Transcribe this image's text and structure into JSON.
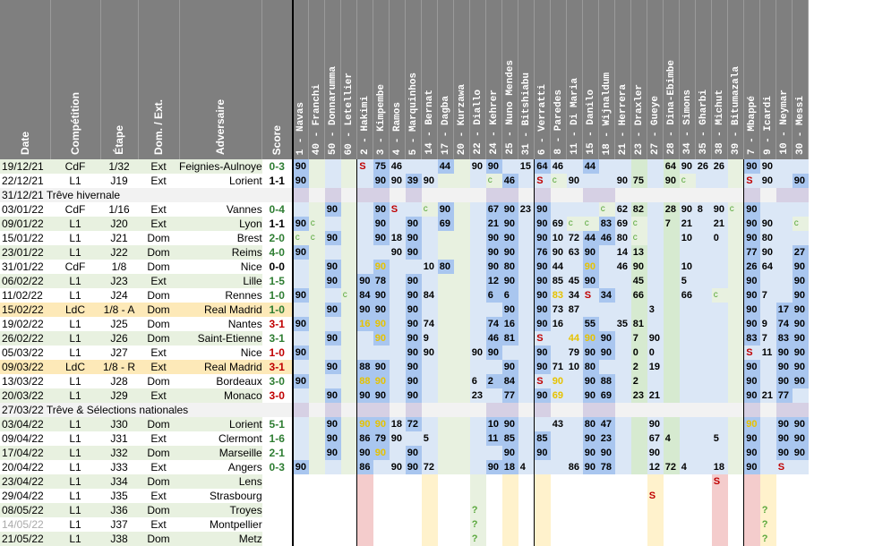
{
  "headers": {
    "info": [
      "Date",
      "Compétition",
      "Étape",
      "Dom. / Ext.",
      "Adversaire",
      "Score"
    ],
    "players": [
      "1 - Navas",
      "40 - Franchi",
      "50 - Donnarumma",
      "60 - Letellier",
      "2 - Hakimi",
      "3 - Kimpembe",
      "4 - Ramos",
      "5 - Marquinhos",
      "14 - Bernat",
      "17 - Dagba",
      "20 - Kurzawa",
      "22 - Diallo",
      "24 - Kehrer",
      "25 - Nuno Mendes",
      "31 - Bitshiabu",
      "6 - Verratti",
      "8 - Paredes",
      "11 - Di Maria",
      "15 - Danilo",
      "18 - Wijnaldum",
      "21 - Herrera",
      "23 - Draxler",
      "27 - Gueye",
      "28 - Dina-Ebimbe",
      "34 - Simons",
      "35 - Gharbi",
      "38 - Michut",
      "39 - Bitumazala",
      "7 - Mbappé",
      "9 - Icardi",
      "10 - Neymar",
      "30 - Messi"
    ]
  },
  "rows": [
    {
      "date": "19/12/21",
      "comp": "CdF",
      "step": "1/32",
      "ha": "Ext",
      "opp": "Feignies-Aulnoye",
      "score": "0-3",
      "sc": "green",
      "cells": [
        "90",
        "",
        "",
        "",
        "S",
        "75",
        "46",
        "",
        "",
        "44",
        "",
        "90",
        "90",
        "",
        "15",
        "64",
        "46",
        "",
        "44",
        "",
        "",
        "",
        "",
        "64",
        "90",
        "26",
        "26",
        "",
        "90",
        "90",
        "",
        ""
      ]
    },
    {
      "date": "22/12/21",
      "comp": "L1",
      "step": "J19",
      "ha": "Ext",
      "opp": "Lorient",
      "score": "1-1",
      "sc": "dark",
      "cells": [
        "90",
        "",
        "",
        "",
        "",
        "90",
        "90",
        "39",
        "90",
        "",
        "",
        "",
        "c",
        "46",
        "",
        "S",
        "c",
        "90",
        "",
        "",
        "90",
        "75",
        "",
        "90",
        "c",
        "",
        "",
        "",
        "S",
        "90",
        "",
        "90"
      ]
    },
    {
      "type": "sep",
      "text": "31/12/21  Trêve hivernale"
    },
    {
      "date": "03/01/22",
      "comp": "CdF",
      "step": "1/16",
      "ha": "Ext",
      "opp": "Vannes",
      "score": "0-4",
      "sc": "green",
      "cells": [
        "",
        "",
        "90",
        "",
        "",
        "90",
        "S",
        "",
        "c",
        "90",
        "",
        "",
        "67",
        "90",
        "23",
        "90",
        "",
        "",
        "",
        "c",
        "62",
        "82",
        "",
        "28",
        "90",
        "8",
        "90",
        "c",
        "90",
        "",
        "",
        ""
      ]
    },
    {
      "date": "09/01/22",
      "comp": "L1",
      "step": "J20",
      "ha": "Ext",
      "opp": "Lyon",
      "score": "1-1",
      "sc": "dark",
      "cells": [
        "90",
        "c",
        "",
        "",
        "",
        "90",
        "",
        "90",
        "",
        "69",
        "",
        "",
        "21",
        "90",
        "",
        "90",
        "69",
        "c",
        "c",
        "83",
        "69",
        "c",
        "",
        "7",
        "21",
        "",
        "21",
        "",
        "90",
        "90",
        "",
        "c"
      ]
    },
    {
      "date": "15/01/22",
      "comp": "L1",
      "step": "J21",
      "ha": "Dom",
      "opp": "Brest",
      "score": "2-0",
      "sc": "green",
      "cells": [
        "c",
        "c",
        "90",
        "",
        "",
        "90",
        "18",
        "90",
        "",
        "",
        "",
        "",
        "90",
        "90",
        "",
        "90",
        "10",
        "72",
        "44",
        "46",
        "80",
        "c",
        "",
        "",
        "10",
        "",
        "0",
        "",
        "90",
        "80",
        "",
        ""
      ]
    },
    {
      "date": "23/01/22",
      "comp": "L1",
      "step": "J22",
      "ha": "Dom",
      "opp": "Reims",
      "score": "4-0",
      "sc": "green",
      "cells": [
        "90",
        "",
        "",
        "",
        "",
        "",
        "90",
        "90",
        "",
        "",
        "",
        "",
        "90",
        "90",
        "",
        "76",
        "90",
        "63",
        "90",
        "",
        "14",
        "13",
        "",
        "",
        "",
        "",
        "",
        "",
        "77",
        "90",
        "",
        "27"
      ]
    },
    {
      "date": "31/01/22",
      "comp": "CdF",
      "step": "1/8",
      "ha": "Dom",
      "opp": "Nice",
      "score": "0-0",
      "sc": "dark",
      "cells": [
        "",
        "",
        "90",
        "",
        "",
        "90",
        "",
        "",
        "10",
        "80",
        "",
        "",
        "90",
        "80",
        "",
        "90",
        "44",
        "",
        "90",
        "",
        "46",
        "90",
        "",
        "",
        "10",
        "",
        "",
        "",
        "26",
        "64",
        "",
        "90"
      ]
    },
    {
      "date": "06/02/22",
      "comp": "L1",
      "step": "J23",
      "ha": "Ext",
      "opp": "Lille",
      "score": "1-5",
      "sc": "green",
      "cells": [
        "",
        "",
        "90",
        "",
        "90",
        "78",
        "",
        "90",
        "",
        "",
        "",
        "",
        "12",
        "90",
        "",
        "90",
        "85",
        "45",
        "90",
        "",
        "",
        "45",
        "",
        "",
        "5",
        "",
        "",
        "",
        "90",
        "",
        "",
        "90"
      ]
    },
    {
      "date": "11/02/22",
      "comp": "L1",
      "step": "J24",
      "ha": "Dom",
      "opp": "Rennes",
      "score": "1-0",
      "sc": "green",
      "cells": [
        "90",
        "",
        "",
        "c",
        "84",
        "90",
        "",
        "90",
        "84",
        "",
        "",
        "",
        "6",
        "6",
        "",
        "90",
        "83",
        "34",
        "S",
        "34",
        "",
        "66",
        "",
        "",
        "66",
        "",
        "c",
        "",
        "90",
        "7",
        "",
        "90"
      ]
    },
    {
      "date": "15/02/22",
      "comp": "LdC",
      "step": "1/8 - A",
      "ha": "Dom",
      "opp": "Real Madrid",
      "score": "1-0",
      "sc": "green",
      "ldc": true,
      "cells": [
        "",
        "",
        "90",
        "",
        "90",
        "90",
        "",
        "90",
        "",
        "",
        "",
        "",
        "",
        "90",
        "",
        "90",
        "73",
        "87",
        "",
        "",
        "",
        "",
        "3",
        "",
        "",
        "",
        "",
        "",
        "90",
        "",
        "17",
        "90"
      ]
    },
    {
      "date": "19/02/22",
      "comp": "L1",
      "step": "J25",
      "ha": "Dom",
      "opp": "Nantes",
      "score": "3-1",
      "sc": "red",
      "cells": [
        "90",
        "",
        "",
        "",
        "16",
        "90",
        "",
        "90",
        "74",
        "",
        "",
        "",
        "74",
        "16",
        "",
        "90",
        "16",
        "",
        "55",
        "",
        "35",
        "81",
        "",
        "",
        "",
        "",
        "",
        "",
        "90",
        "9",
        "74",
        "90"
      ]
    },
    {
      "date": "26/02/22",
      "comp": "L1",
      "step": "J26",
      "ha": "Dom",
      "opp": "Saint-Etienne",
      "score": "3-1",
      "sc": "green",
      "cells": [
        "",
        "",
        "90",
        "",
        "",
        "90",
        "",
        "90",
        "9",
        "",
        "",
        "",
        "46",
        "81",
        "",
        "S",
        "",
        "44",
        "90",
        "90",
        "",
        "7",
        "90",
        "",
        "",
        "",
        "",
        "",
        "83",
        "7",
        "83",
        "90"
      ]
    },
    {
      "date": "05/03/22",
      "comp": "L1",
      "step": "J27",
      "ha": "Ext",
      "opp": "Nice",
      "score": "1-0",
      "sc": "red",
      "cells": [
        "90",
        "",
        "",
        "",
        "",
        "",
        "",
        "90",
        "90",
        "",
        "",
        "90",
        "90",
        "",
        "",
        "90",
        "",
        "79",
        "90",
        "90",
        "",
        "0",
        "0",
        "",
        "",
        "",
        "",
        "",
        "S",
        "11",
        "90",
        "90"
      ]
    },
    {
      "date": "09/03/22",
      "comp": "LdC",
      "step": "1/8 - R",
      "ha": "Ext",
      "opp": "Real Madrid",
      "score": "3-1",
      "sc": "red",
      "ldc": true,
      "cells": [
        "",
        "",
        "90",
        "",
        "88",
        "90",
        "",
        "90",
        "",
        "",
        "",
        "",
        "",
        "90",
        "",
        "90",
        "71",
        "10",
        "80",
        "",
        "",
        "2",
        "19",
        "",
        "",
        "",
        "",
        "",
        "90",
        "",
        "90",
        "90"
      ]
    },
    {
      "date": "13/03/22",
      "comp": "L1",
      "step": "J28",
      "ha": "Dom",
      "opp": "Bordeaux",
      "score": "3-0",
      "sc": "green",
      "cells": [
        "90",
        "",
        "",
        "",
        "88",
        "90",
        "",
        "90",
        "",
        "",
        "",
        "6",
        "2",
        "84",
        "",
        "S",
        "90",
        "",
        "90",
        "88",
        "",
        "2",
        "",
        "",
        "",
        "",
        "",
        "",
        "90",
        "",
        "90",
        "90"
      ]
    },
    {
      "date": "20/03/22",
      "comp": "L1",
      "step": "J29",
      "ha": "Ext",
      "opp": "Monaco",
      "score": "3-0",
      "sc": "red",
      "cells": [
        "",
        "",
        "90",
        "",
        "90",
        "90",
        "",
        "90",
        "",
        "",
        "",
        "23",
        "",
        "77",
        "",
        "90",
        "69",
        "",
        "90",
        "69",
        "",
        "23",
        "21",
        "",
        "",
        "",
        "",
        "",
        "90",
        "21",
        "77",
        ""
      ]
    },
    {
      "type": "sep",
      "text": "27/03/22  Trêve & Sélections nationales"
    },
    {
      "date": "03/04/22",
      "comp": "L1",
      "step": "J30",
      "ha": "Dom",
      "opp": "Lorient",
      "score": "5-1",
      "sc": "green",
      "cells": [
        "",
        "",
        "90",
        "",
        "90",
        "90",
        "18",
        "72",
        "",
        "",
        "",
        "",
        "10",
        "90",
        "",
        "",
        "43",
        "",
        "80",
        "47",
        "",
        "",
        "90",
        "",
        "",
        "",
        "",
        "",
        "90",
        "",
        "90",
        "90"
      ]
    },
    {
      "date": "09/04/22",
      "comp": "L1",
      "step": "J31",
      "ha": "Ext",
      "opp": "Clermont",
      "score": "1-6",
      "sc": "green",
      "cells": [
        "",
        "",
        "90",
        "",
        "86",
        "79",
        "90",
        "",
        "5",
        "",
        "",
        "",
        "11",
        "85",
        "",
        "85",
        "",
        "",
        "90",
        "23",
        "",
        "",
        "67",
        "4",
        "",
        "",
        "5",
        "",
        "90",
        "",
        "90",
        "90"
      ]
    },
    {
      "date": "17/04/22",
      "comp": "L1",
      "step": "J32",
      "ha": "Dom",
      "opp": "Marseille",
      "score": "2-1",
      "sc": "green",
      "cells": [
        "",
        "",
        "90",
        "",
        "90",
        "90",
        "",
        "90",
        "",
        "",
        "",
        "",
        "",
        "90",
        "",
        "90",
        "",
        "",
        "90",
        "90",
        "",
        "",
        "90",
        "",
        "",
        "",
        "",
        "",
        "90",
        "",
        "90",
        "90"
      ]
    },
    {
      "date": "20/04/22",
      "comp": "L1",
      "step": "J33",
      "ha": "Ext",
      "opp": "Angers",
      "score": "0-3",
      "sc": "green",
      "cells": [
        "90",
        "",
        "",
        "",
        "86",
        "",
        "90",
        "90",
        "72",
        "",
        "",
        "",
        "90",
        "18",
        "4",
        "",
        "",
        "86",
        "90",
        "78",
        "",
        "",
        "12",
        "72",
        "4",
        "",
        "18",
        "",
        "90",
        "",
        "S",
        ""
      ]
    },
    {
      "date": "23/04/22",
      "comp": "L1",
      "step": "J34",
      "ha": "Dom",
      "opp": "Lens",
      "score": "",
      "sc": "dark",
      "cells": [
        "",
        "",
        "",
        "",
        "",
        "",
        "",
        "",
        "",
        "",
        "",
        "",
        "",
        "",
        "",
        "",
        "",
        "",
        "",
        "",
        "",
        "",
        "",
        "",
        "",
        "",
        "S",
        "",
        "",
        "",
        "",
        ""
      ]
    },
    {
      "date": "29/04/22",
      "comp": "L1",
      "step": "J35",
      "ha": "Ext",
      "opp": "Strasbourg",
      "score": "",
      "sc": "dark",
      "cells": [
        "",
        "",
        "",
        "",
        "",
        "",
        "",
        "",
        "",
        "",
        "",
        "",
        "",
        "",
        "",
        "",
        "",
        "",
        "",
        "",
        "",
        "",
        "S",
        "",
        "",
        "",
        "",
        "",
        "",
        "",
        "",
        ""
      ]
    },
    {
      "date": "08/05/22",
      "comp": "L1",
      "step": "J36",
      "ha": "Dom",
      "opp": "Troyes",
      "score": "",
      "sc": "dark",
      "cells": [
        "",
        "",
        "",
        "",
        "",
        "",
        "",
        "",
        "",
        "",
        "",
        "?",
        "",
        "",
        "",
        "",
        "",
        "",
        "",
        "",
        "",
        "",
        "",
        "",
        "",
        "",
        "",
        "",
        "",
        "?",
        "",
        ""
      ]
    },
    {
      "date": "14/05/22",
      "comp": "L1",
      "step": "J37",
      "ha": "Ext",
      "opp": "Montpellier",
      "score": "",
      "sc": "dark",
      "faded": true,
      "cells": [
        "",
        "",
        "",
        "",
        "",
        "",
        "",
        "",
        "",
        "",
        "",
        "?",
        "",
        "",
        "",
        "",
        "",
        "",
        "",
        "",
        "",
        "",
        "",
        "",
        "",
        "",
        "",
        "",
        "",
        "?",
        "",
        ""
      ]
    },
    {
      "date": "21/05/22",
      "comp": "L1",
      "step": "J38",
      "ha": "Dom",
      "opp": "Metz",
      "score": "",
      "sc": "dark",
      "cells": [
        "",
        "",
        "",
        "",
        "",
        "",
        "",
        "",
        "",
        "",
        "",
        "?",
        "",
        "",
        "",
        "",
        "",
        "",
        "",
        "",
        "",
        "",
        "",
        "",
        "",
        "",
        "",
        "",
        "",
        "?",
        "",
        ""
      ]
    }
  ],
  "colors": {
    "header": "#7f7f7f",
    "started": "#a9c6ef",
    "sub": "#dbe7f6",
    "unused": "#d6ead0",
    "injured": "#fff2cc",
    "suspended": "#f4cccc",
    "ldc_row": "#fde9b8"
  }
}
